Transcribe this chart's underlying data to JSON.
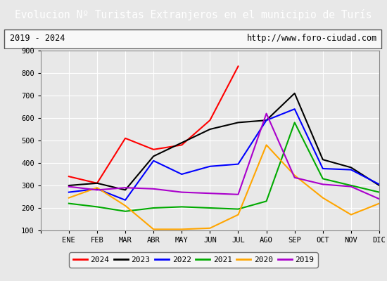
{
  "title": "Evolucion Nº Turistas Extranjeros en el municipio de Turís",
  "title_color": "#ffffff",
  "title_bg_color": "#4472c4",
  "subtitle_left": "2019 - 2024",
  "subtitle_right": "http://www.foro-ciudad.com",
  "months": [
    "",
    "ENE",
    "FEB",
    "MAR",
    "ABR",
    "MAY",
    "JUN",
    "JUL",
    "AGO",
    "SEP",
    "OCT",
    "NOV",
    "DIC"
  ],
  "ylim": [
    100,
    900
  ],
  "yticks": [
    100,
    200,
    300,
    400,
    500,
    600,
    700,
    800,
    900
  ],
  "series": {
    "2024": {
      "color": "#ff0000",
      "data": [
        null,
        340,
        310,
        510,
        460,
        480,
        590,
        830,
        null,
        null,
        null,
        null,
        null
      ]
    },
    "2023": {
      "color": "#000000",
      "data": [
        null,
        300,
        310,
        280,
        430,
        490,
        550,
        580,
        590,
        710,
        415,
        380,
        300
      ]
    },
    "2022": {
      "color": "#0000ff",
      "data": [
        null,
        270,
        285,
        235,
        410,
        350,
        385,
        395,
        590,
        640,
        375,
        370,
        305
      ]
    },
    "2021": {
      "color": "#00aa00",
      "data": [
        null,
        220,
        205,
        185,
        200,
        205,
        200,
        195,
        230,
        580,
        330,
        300,
        270
      ]
    },
    "2020": {
      "color": "#ffa500",
      "data": [
        null,
        245,
        290,
        210,
        105,
        105,
        110,
        170,
        480,
        345,
        245,
        170,
        220
      ]
    },
    "2019": {
      "color": "#aa00cc",
      "data": [
        null,
        295,
        280,
        290,
        285,
        270,
        265,
        260,
        620,
        335,
        305,
        295,
        240
      ]
    }
  },
  "legend_order": [
    "2024",
    "2023",
    "2022",
    "2021",
    "2020",
    "2019"
  ],
  "bg_color": "#e8e8e8",
  "plot_bg_color": "#e8e8e8",
  "grid_color": "#ffffff",
  "fig_width": 5.5,
  "fig_height": 4.0,
  "dpi": 100
}
